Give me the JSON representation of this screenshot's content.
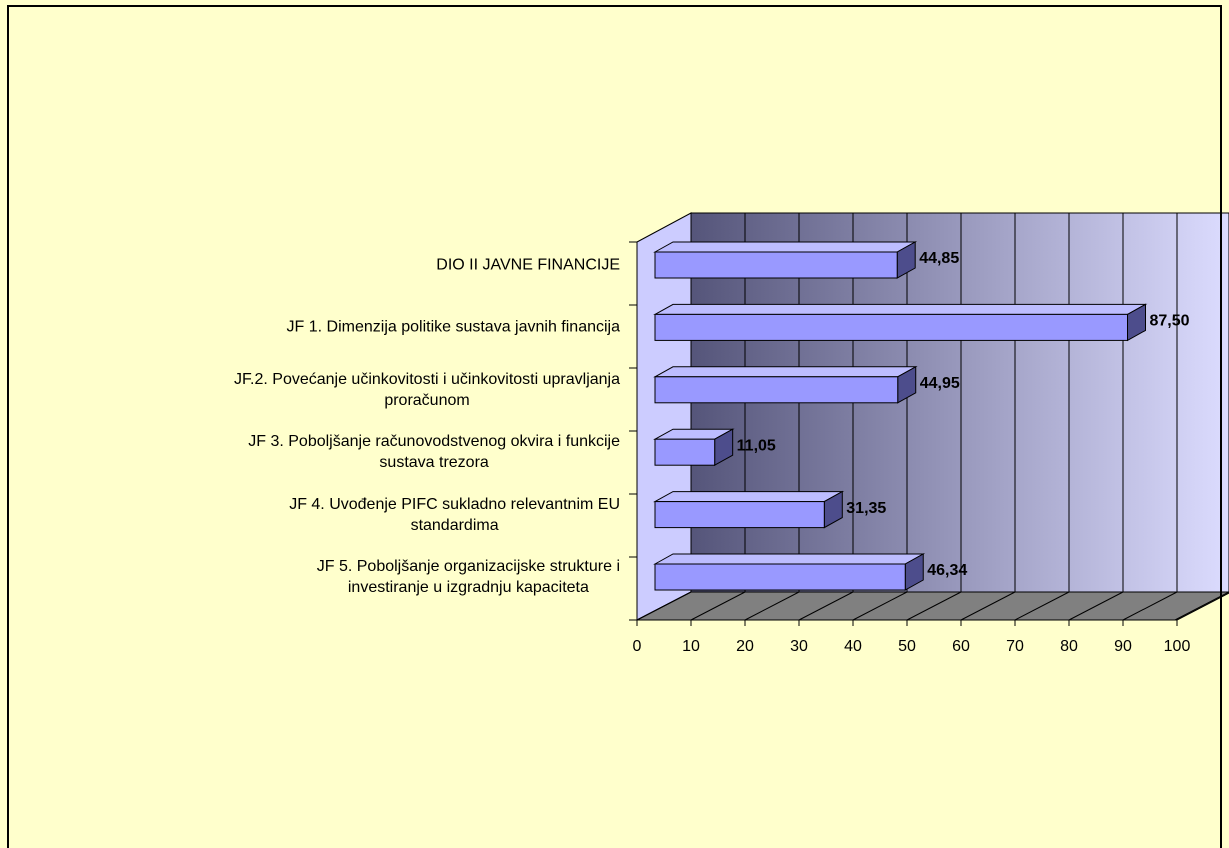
{
  "chart_data": {
    "type": "bar3d_horizontal",
    "categories": [
      "DIO II JAVNE FINANCIJE",
      "JF 1. Dimenzija politike sustava javnih financija",
      "JF.2. Povećanje učinkovitosti i učinkovitosti upravljanja\nproračunom",
      "JF 3. Poboljšanje računovodstvenog okvira i funkcije\nsustava trezora",
      "JF 4. Uvođenje PIFC sukladno relevantnim EU\nstandardima",
      "JF 5. Poboljšanje organizacijske strukture i\ninvestiranje u izgradnju kapaciteta"
    ],
    "values": [
      44.85,
      87.5,
      44.95,
      11.05,
      31.35,
      46.34
    ],
    "value_labels": [
      "44,85",
      "87,50",
      "44,95",
      "11,05",
      "31,35",
      "46,34"
    ],
    "color": "#9999ff",
    "xlim": [
      0,
      100
    ],
    "xticks": [
      0,
      10,
      20,
      30,
      40,
      50,
      60,
      70,
      80,
      90,
      100
    ],
    "grid": true
  }
}
